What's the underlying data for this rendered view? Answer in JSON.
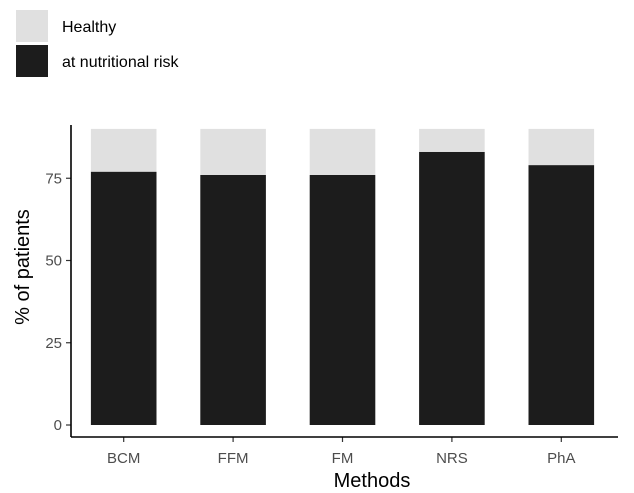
{
  "chart_data": {
    "type": "bar",
    "stacked": true,
    "categories": [
      "BCM",
      "FFM",
      "FM",
      "NRS",
      "PhA"
    ],
    "series": [
      {
        "name": "at nutritional risk",
        "color": "#1c1c1c",
        "values": [
          77,
          76,
          76,
          83,
          79
        ]
      },
      {
        "name": "Healthy",
        "color": "#e0e0e0",
        "values": [
          13,
          14,
          14,
          7,
          11
        ]
      }
    ],
    "legend": {
      "placement": "top-left",
      "entries": [
        "Healthy",
        "at nutritional risk"
      ]
    },
    "xlabel": "Methods",
    "ylabel": "% of patients",
    "ylim": [
      0,
      92
    ],
    "yticks": [
      0,
      25,
      50,
      75
    ],
    "grid": false
  }
}
